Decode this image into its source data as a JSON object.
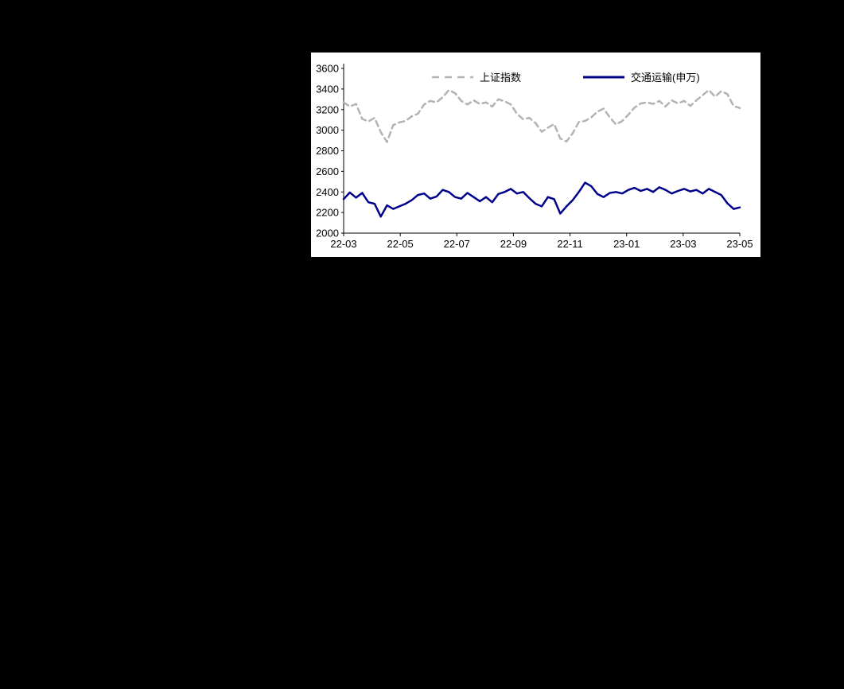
{
  "page": {
    "background_color": "#000000",
    "panel_background": "#ffffff"
  },
  "chart_data": {
    "type": "line",
    "title": "",
    "xlabel": "",
    "ylabel": "",
    "ylim": [
      2000,
      3600
    ],
    "y_ticks": [
      3600,
      3400,
      3200,
      3000,
      2800,
      2600,
      2400,
      2200,
      2000
    ],
    "x_ticks": [
      "22-03",
      "22-05",
      "22-07",
      "22-09",
      "22-11",
      "23-01",
      "23-03",
      "23-05"
    ],
    "grid": false,
    "legend_position": "top",
    "axis_color": "#000000",
    "series": [
      {
        "name": "上证指数",
        "color": "#b3b3b3",
        "style": "dashed",
        "dash": "7 5",
        "width": 2.5,
        "values": [
          3270,
          3230,
          3255,
          3110,
          3085,
          3120,
          2980,
          2886,
          3050,
          3075,
          3090,
          3135,
          3160,
          3250,
          3285,
          3270,
          3320,
          3390,
          3360,
          3285,
          3250,
          3290,
          3255,
          3270,
          3230,
          3300,
          3280,
          3250,
          3160,
          3105,
          3120,
          3070,
          2985,
          3025,
          3060,
          2920,
          2890,
          2970,
          3080,
          3090,
          3125,
          3180,
          3210,
          3125,
          3055,
          3090,
          3150,
          3220,
          3260,
          3270,
          3255,
          3285,
          3230,
          3290,
          3260,
          3285,
          3235,
          3290,
          3340,
          3390,
          3325,
          3380,
          3350,
          3235,
          3215
        ]
      },
      {
        "name": "交通运输(申万)",
        "color": "#00008b",
        "style": "solid",
        "dash": "",
        "width": 2.5,
        "values": [
          2330,
          2395,
          2345,
          2390,
          2300,
          2285,
          2160,
          2270,
          2235,
          2260,
          2285,
          2320,
          2370,
          2385,
          2335,
          2355,
          2420,
          2400,
          2350,
          2335,
          2390,
          2350,
          2310,
          2350,
          2300,
          2380,
          2400,
          2430,
          2385,
          2400,
          2340,
          2285,
          2260,
          2350,
          2330,
          2190,
          2260,
          2320,
          2400,
          2490,
          2455,
          2380,
          2350,
          2390,
          2400,
          2385,
          2420,
          2440,
          2410,
          2430,
          2400,
          2445,
          2420,
          2385,
          2410,
          2430,
          2405,
          2420,
          2385,
          2430,
          2400,
          2370,
          2290,
          2235,
          2250
        ]
      }
    ]
  }
}
